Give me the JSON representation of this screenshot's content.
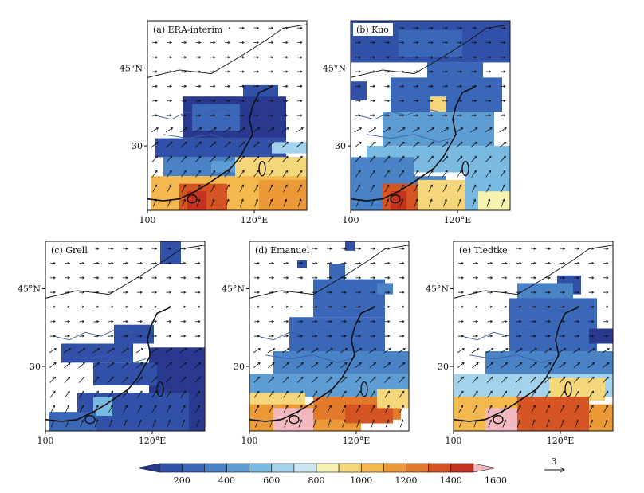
{
  "figure": {
    "panels": [
      {
        "id": "a",
        "title": "(a) ERA-interim",
        "shape": "a"
      },
      {
        "id": "b",
        "title": "(b) Kuo",
        "shape": "b"
      },
      {
        "id": "c",
        "title": "(c) Grell",
        "shape": "c"
      },
      {
        "id": "d",
        "title": "(d) Emanuel",
        "shape": "d"
      },
      {
        "id": "e",
        "title": "(e) Tiedtke",
        "shape": "e"
      }
    ],
    "axis_labels": {
      "lat_45": "45°N",
      "lat_30": "30",
      "lon_100": "100",
      "lon_120": "120°E"
    },
    "colorbar": {
      "ticks": [
        "200",
        "400",
        "600",
        "800",
        "1000",
        "1200",
        "1400",
        "1600"
      ],
      "colors": [
        "#2a3990",
        "#3150a8",
        "#3a67b8",
        "#4a82c6",
        "#5d9dd4",
        "#7ab9e0",
        "#a3d2ec",
        "#c9e6f2",
        "#f7f2b0",
        "#f6d67a",
        "#f3b94e",
        "#ec9a37",
        "#e27a2b",
        "#d55424",
        "#c2321f",
        "#f2b8c0"
      ]
    },
    "reference_vector": {
      "label": "3"
    }
  }
}
